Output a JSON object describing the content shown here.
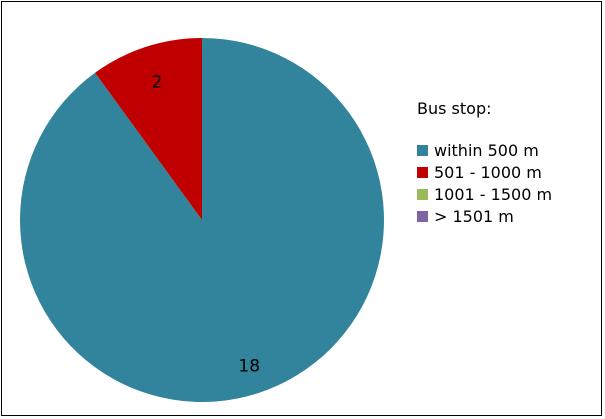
{
  "chart_data": {
    "type": "pie",
    "legend_title": "Bus stop:",
    "legend_position": "right",
    "categories": [
      "within 500 m",
      "501 - 1000 m",
      "1001 - 1500 m",
      "> 1501 m"
    ],
    "values": [
      18,
      2,
      0,
      0
    ],
    "labels": [
      "18",
      "2",
      "",
      ""
    ],
    "colors": [
      "#31849B",
      "#C00000",
      "#9BBB59",
      "#8064A2"
    ]
  }
}
